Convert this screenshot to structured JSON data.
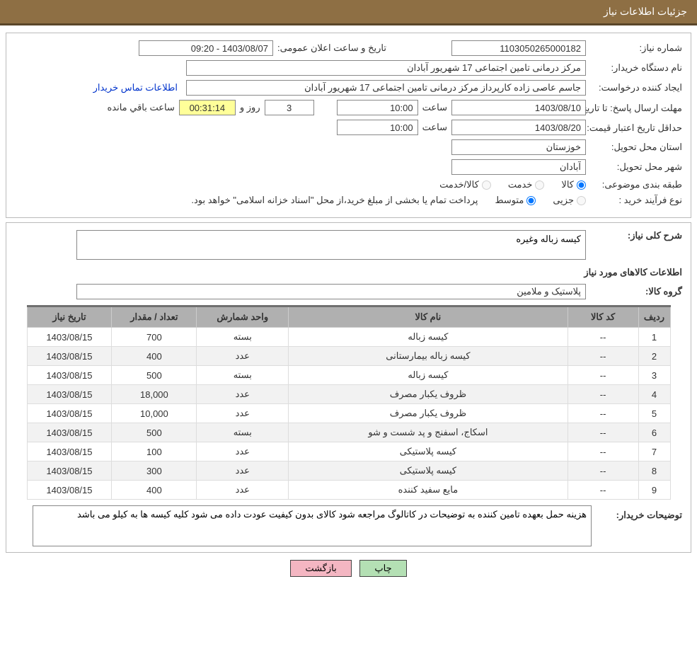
{
  "header": {
    "title": "جزئیات اطلاعات نیاز"
  },
  "form": {
    "need_no_label": "شماره نیاز:",
    "need_no": "1103050265000182",
    "announce_label": "تاریخ و ساعت اعلان عمومی:",
    "announce_value": "1403/08/07 - 09:20",
    "buyer_label": "نام دستگاه خریدار:",
    "buyer_value": "مرکز درمانی تامین اجتماعی 17 شهریور آبادان",
    "requester_label": "ایجاد کننده درخواست:",
    "requester_value": "جاسم عاصی زاده کارپرداز مرکز درمانی تامین اجتماعی 17 شهریور آبادان",
    "contact_link": "اطلاعات تماس خریدار",
    "deadline_label": "مهلت ارسال پاسخ: تا تاریخ:",
    "deadline_date": "1403/08/10",
    "time_label": "ساعت",
    "deadline_time": "10:00",
    "days": "3",
    "days_and": "روز و",
    "countdown": "00:31:14",
    "remain": "ساعت باقي مانده",
    "validity_label": "حداقل تاریخ اعتبار قیمت: تا تاریخ:",
    "validity_date": "1403/08/20",
    "validity_time": "10:00",
    "province_label": "استان محل تحویل:",
    "province_value": "خوزستان",
    "city_label": "شهر محل تحویل:",
    "city_value": "آبادان",
    "category_label": "طبقه بندی موضوعی:",
    "opt_goods": "کالا",
    "opt_service": "خدمت",
    "opt_both": "کالا/خدمت",
    "purchase_type_label": "نوع فرآیند خرید :",
    "opt_minor": "جزیی",
    "opt_medium": "متوسط",
    "purchase_note": "پرداخت تمام یا بخشی از مبلغ خرید،از محل \"اسناد خزانه اسلامی\" خواهد بود."
  },
  "desc": {
    "label": "شرح کلی نیاز:",
    "value": "کیسه زباله وغیره"
  },
  "goods_section_title": "اطلاعات کالاهای مورد نیاز",
  "group": {
    "label": "گروه کالا:",
    "value": "پلاستیک و ملامین"
  },
  "table": {
    "columns": [
      "ردیف",
      "کد کالا",
      "نام کالا",
      "واحد شمارش",
      "تعداد / مقدار",
      "تاریخ نیاز"
    ],
    "rows": [
      [
        "1",
        "--",
        "کیسه زباله",
        "بسته",
        "700",
        "1403/08/15"
      ],
      [
        "2",
        "--",
        "کیسه زباله بیمارستانی",
        "عدد",
        "400",
        "1403/08/15"
      ],
      [
        "3",
        "--",
        "کیسه زباله",
        "بسته",
        "500",
        "1403/08/15"
      ],
      [
        "4",
        "--",
        "ظروف یکبار مصرف",
        "عدد",
        "18,000",
        "1403/08/15"
      ],
      [
        "5",
        "--",
        "ظروف یکبار مصرف",
        "عدد",
        "10,000",
        "1403/08/15"
      ],
      [
        "6",
        "--",
        "اسکاج، اسفنج و پد شست و شو",
        "بسته",
        "500",
        "1403/08/15"
      ],
      [
        "7",
        "--",
        "کیسه پلاستیکی",
        "عدد",
        "100",
        "1403/08/15"
      ],
      [
        "8",
        "--",
        "کیسه پلاستیکی",
        "عدد",
        "300",
        "1403/08/15"
      ],
      [
        "9",
        "--",
        "مایع سفید کننده",
        "عدد",
        "400",
        "1403/08/15"
      ]
    ]
  },
  "buyer_notes": {
    "label": "توضیحات خریدار:",
    "value": "هزینه حمل بعهده تامین کننده به توضیحات در کاتالوگ مراجعه شود کالای بدون کیفیت عودت داده می شود کلیه کیسه ها به کیلو می باشد"
  },
  "buttons": {
    "print": "چاپ",
    "back": "بازگشت"
  },
  "colors": {
    "header_bg": "#8e6f44",
    "header_border": "#5a4629",
    "th_bg": "#b0b0b0",
    "row_alt": "#f2f2f2",
    "countdown_bg": "#ffff99",
    "link": "#0033cc",
    "btn_print": "#b4e0b4",
    "btn_back": "#f4b6c2"
  }
}
